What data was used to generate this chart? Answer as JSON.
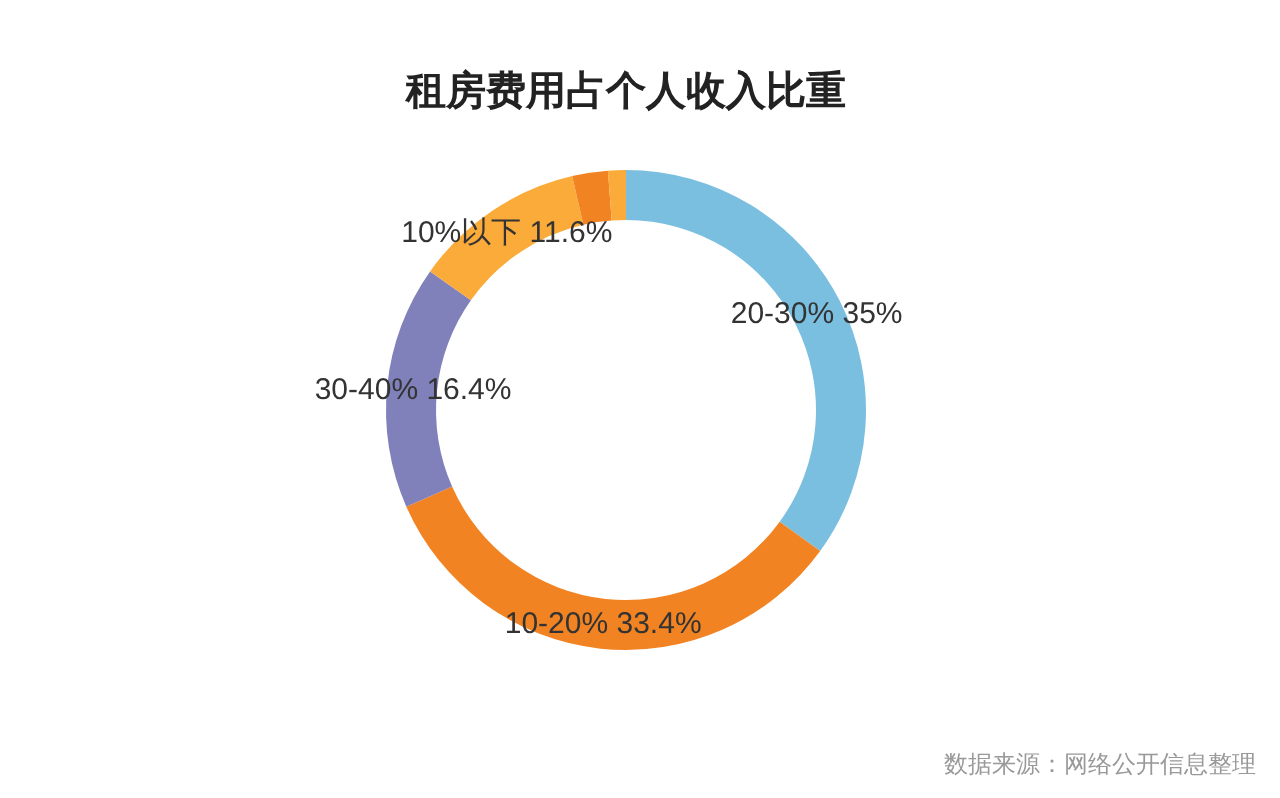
{
  "chart_data": {
    "type": "donut",
    "title": "租房费用占个人收入比重",
    "categories": [
      "20-30%",
      "10-20%",
      "30-40%",
      "10%以下",
      null,
      null
    ],
    "values": [
      35,
      33.4,
      16.4,
      11.6,
      2.4,
      1.2
    ],
    "value_labels": [
      "35%",
      "33.4%",
      "16.4%",
      "11.6%",
      null,
      null
    ],
    "colors": [
      "#7bbfe0",
      "#f28322",
      "#8080bb",
      "#fbab3a",
      "#f28322",
      "#fbab3a"
    ],
    "annotations": [
      "数据来源：网络公开信息整理"
    ]
  }
}
